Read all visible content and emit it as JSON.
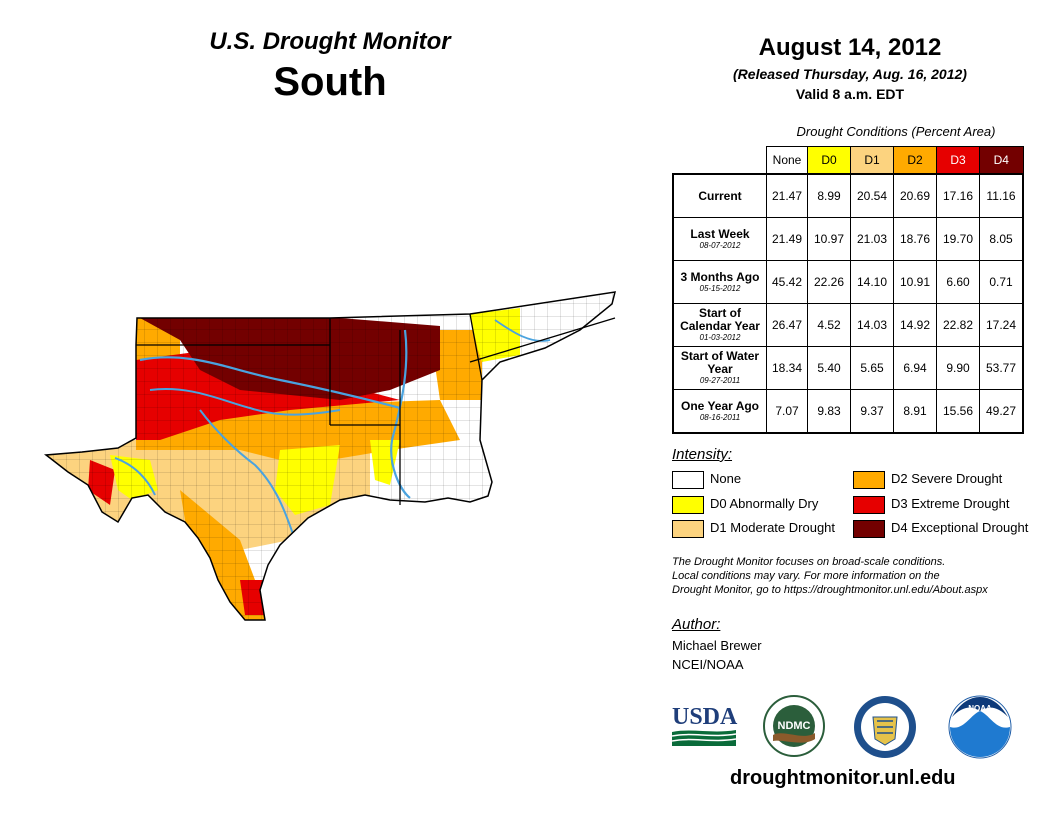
{
  "header": {
    "product_title": "U.S. Drought Monitor",
    "region": "South",
    "map_date": "August 14, 2012",
    "released": "(Released Thursday, Aug. 16, 2012)",
    "valid": "Valid 8 a.m. EDT"
  },
  "table": {
    "caption": "Drought Conditions (Percent Area)",
    "columns": [
      "None",
      "D0",
      "D1",
      "D2",
      "D3",
      "D4"
    ],
    "column_colors": [
      "#ffffff",
      "#ffff00",
      "#fcd37f",
      "#ffaa00",
      "#e60000",
      "#730000"
    ],
    "rows": [
      {
        "label": "Current",
        "sub": "",
        "values": [
          "21.47",
          "8.99",
          "20.54",
          "20.69",
          "17.16",
          "11.16"
        ]
      },
      {
        "label": "Last Week",
        "sub": "08-07-2012",
        "values": [
          "21.49",
          "10.97",
          "21.03",
          "18.76",
          "19.70",
          "8.05"
        ]
      },
      {
        "label": "3 Months Ago",
        "sub": "05-15-2012",
        "values": [
          "45.42",
          "22.26",
          "14.10",
          "10.91",
          "6.60",
          "0.71"
        ]
      },
      {
        "label": "Start of Calendar Year",
        "sub": "01-03-2012",
        "values": [
          "26.47",
          "4.52",
          "14.03",
          "14.92",
          "22.82",
          "17.24"
        ]
      },
      {
        "label": "Start of Water Year",
        "sub": "09-27-2011",
        "values": [
          "18.34",
          "5.40",
          "5.65",
          "6.94",
          "9.90",
          "53.77"
        ]
      },
      {
        "label": "One Year Ago",
        "sub": "08-16-2011",
        "values": [
          "7.07",
          "9.83",
          "9.37",
          "8.91",
          "15.56",
          "49.27"
        ]
      }
    ]
  },
  "legend": {
    "title": "Intensity:",
    "items": [
      {
        "label": "None",
        "color": "#ffffff"
      },
      {
        "label": "D0 Abnormally Dry",
        "color": "#ffff00"
      },
      {
        "label": "D1 Moderate Drought",
        "color": "#fcd37f"
      },
      {
        "label": "D2 Severe Drought",
        "color": "#ffaa00"
      },
      {
        "label": "D3 Extreme Drought",
        "color": "#e60000"
      },
      {
        "label": "D4 Exceptional Drought",
        "color": "#730000"
      }
    ]
  },
  "note": {
    "line1": "The Drought Monitor focuses on broad-scale conditions.",
    "line2": "Local conditions may vary. For more information on the",
    "line3": "Drought Monitor, go to https://droughtmonitor.unl.edu/About.aspx"
  },
  "author": {
    "label": "Author:",
    "name": "Michael Brewer",
    "org": "NCEI/NOAA"
  },
  "logos": {
    "usda": "USDA",
    "ndmc": "NDMC",
    "noaa": "NOAA"
  },
  "website": "droughtmonitor.unl.edu",
  "map": {
    "water_color": "#4aa3df",
    "boundary_color": "#000000"
  }
}
